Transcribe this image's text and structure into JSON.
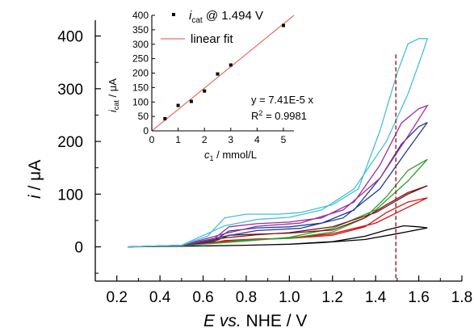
{
  "chart_data": [
    {
      "type": "line",
      "xlabel": {
        "E": "E",
        "vs": "vs.",
        "rest": "NHE / V"
      },
      "ylabel": {
        "i": "i",
        "rest": "/ μA"
      },
      "xlim": [
        0.1,
        1.8
      ],
      "ylim": [
        -65,
        430
      ],
      "x_ticks": [
        "0.2",
        "0.4",
        "0.6",
        "0.8",
        "1.0",
        "1.2",
        "1.4",
        "1.6",
        "1.8"
      ],
      "y_ticks": [
        "0",
        "100",
        "200",
        "300",
        "400"
      ],
      "marker_line": {
        "x": 1.494,
        "color": "#a52a2a",
        "style": "dashed"
      },
      "series": [
        {
          "color": "#000000",
          "forward": [
            [
              0.25,
              0
            ],
            [
              0.5,
              1
            ],
            [
              0.8,
              3
            ],
            [
              1.0,
              5
            ],
            [
              1.2,
              10
            ],
            [
              1.35,
              20
            ],
            [
              1.45,
              32
            ],
            [
              1.53,
              40
            ],
            [
              1.6,
              38
            ],
            [
              1.64,
              36
            ]
          ],
          "reverse": [
            [
              1.64,
              36
            ],
            [
              1.5,
              25
            ],
            [
              1.35,
              14
            ],
            [
              1.15,
              8
            ],
            [
              1.0,
              5
            ],
            [
              0.8,
              3
            ],
            [
              0.5,
              1
            ],
            [
              0.25,
              0
            ]
          ]
        },
        {
          "color": "#dd1111",
          "forward": [
            [
              0.25,
              0
            ],
            [
              0.5,
              3
            ],
            [
              0.65,
              8
            ],
            [
              0.7,
              12
            ],
            [
              0.85,
              15
            ],
            [
              1.0,
              16
            ],
            [
              1.2,
              22
            ],
            [
              1.35,
              38
            ],
            [
              1.45,
              65
            ],
            [
              1.55,
              85
            ],
            [
              1.64,
              93
            ]
          ],
          "reverse": [
            [
              1.64,
              93
            ],
            [
              1.55,
              75
            ],
            [
              1.4,
              45
            ],
            [
              1.2,
              25
            ],
            [
              1.0,
              17
            ],
            [
              0.85,
              14
            ],
            [
              0.7,
              10
            ],
            [
              0.5,
              3
            ],
            [
              0.25,
              0
            ]
          ]
        },
        {
          "color": "#2e9e2e",
          "forward": [
            [
              0.25,
              0
            ],
            [
              0.5,
              2
            ],
            [
              0.68,
              8
            ],
            [
              0.8,
              13
            ],
            [
              1.0,
              16
            ],
            [
              1.2,
              28
            ],
            [
              1.35,
              55
            ],
            [
              1.45,
              95
            ],
            [
              1.55,
              145
            ],
            [
              1.64,
              166
            ]
          ],
          "reverse": [
            [
              1.64,
              166
            ],
            [
              1.55,
              125
            ],
            [
              1.4,
              70
            ],
            [
              1.2,
              35
            ],
            [
              1.0,
              18
            ],
            [
              0.8,
              11
            ],
            [
              0.5,
              2
            ],
            [
              0.25,
              0
            ]
          ]
        },
        {
          "color": "#7a1515",
          "forward": [
            [
              0.25,
              0
            ],
            [
              0.5,
              3
            ],
            [
              0.65,
              10
            ],
            [
              0.72,
              22
            ],
            [
              0.85,
              24
            ],
            [
              1.0,
              26
            ],
            [
              1.2,
              32
            ],
            [
              1.35,
              55
            ],
            [
              1.45,
              80
            ],
            [
              1.55,
              103
            ],
            [
              1.64,
              116
            ]
          ],
          "reverse": [
            [
              1.64,
              116
            ],
            [
              1.55,
              100
            ],
            [
              1.4,
              65
            ],
            [
              1.2,
              38
            ],
            [
              1.0,
              27
            ],
            [
              0.85,
              23
            ],
            [
              0.7,
              17
            ],
            [
              0.5,
              3
            ],
            [
              0.25,
              0
            ]
          ]
        },
        {
          "color": "#203a9e",
          "forward": [
            [
              0.25,
              0
            ],
            [
              0.5,
              3
            ],
            [
              0.65,
              12
            ],
            [
              0.72,
              30
            ],
            [
              0.85,
              36
            ],
            [
              1.0,
              38
            ],
            [
              1.15,
              45
            ],
            [
              1.3,
              70
            ],
            [
              1.42,
              130
            ],
            [
              1.52,
              195
            ],
            [
              1.6,
              228
            ],
            [
              1.64,
              236
            ]
          ],
          "reverse": [
            [
              1.64,
              236
            ],
            [
              1.55,
              185
            ],
            [
              1.42,
              110
            ],
            [
              1.25,
              55
            ],
            [
              1.05,
              35
            ],
            [
              0.85,
              31
            ],
            [
              0.7,
              20
            ],
            [
              0.5,
              3
            ],
            [
              0.25,
              0
            ]
          ]
        },
        {
          "color": "#9e2e9e",
          "forward": [
            [
              0.25,
              0
            ],
            [
              0.5,
              3
            ],
            [
              0.65,
              15
            ],
            [
              0.72,
              38
            ],
            [
              0.85,
              44
            ],
            [
              1.0,
              47
            ],
            [
              1.15,
              55
            ],
            [
              1.3,
              85
            ],
            [
              1.42,
              155
            ],
            [
              1.52,
              235
            ],
            [
              1.6,
              262
            ],
            [
              1.64,
              268
            ]
          ],
          "reverse": [
            [
              1.64,
              268
            ],
            [
              1.55,
              210
            ],
            [
              1.42,
              130
            ],
            [
              1.25,
              70
            ],
            [
              1.05,
              45
            ],
            [
              0.85,
              39
            ],
            [
              0.7,
              25
            ],
            [
              0.5,
              3
            ],
            [
              0.25,
              0
            ]
          ]
        },
        {
          "color": "#45c0d8",
          "forward": [
            [
              0.25,
              0
            ],
            [
              0.5,
              3
            ],
            [
              0.62,
              20
            ],
            [
              0.7,
              55
            ],
            [
              0.8,
              62
            ],
            [
              0.95,
              62
            ],
            [
              1.05,
              65
            ],
            [
              1.2,
              80
            ],
            [
              1.32,
              110
            ],
            [
              1.42,
              220
            ],
            [
              1.5,
              330
            ],
            [
              1.55,
              385
            ],
            [
              1.6,
              395
            ],
            [
              1.64,
              395
            ]
          ],
          "reverse": [
            [
              1.64,
              395
            ],
            [
              1.62,
              370
            ],
            [
              1.55,
              290
            ],
            [
              1.45,
              200
            ],
            [
              1.3,
              110
            ],
            [
              1.15,
              70
            ],
            [
              1.0,
              56
            ],
            [
              0.85,
              52
            ],
            [
              0.7,
              40
            ],
            [
              0.5,
              3
            ],
            [
              0.25,
              0
            ]
          ]
        }
      ]
    },
    {
      "type": "scatter",
      "xlabel": {
        "c": "c",
        "sub": "1",
        "rest": " / mmol/L"
      },
      "ylabel": {
        "i": "i",
        "sub": "cat",
        "rest": " / μA"
      },
      "xlim": [
        0,
        5.4
      ],
      "ylim": [
        0,
        400
      ],
      "x_ticks": [
        "0",
        "1",
        "2",
        "3",
        "4",
        "5"
      ],
      "y_ticks": [
        "0",
        "50",
        "100",
        "150",
        "200",
        "250",
        "300",
        "350",
        "400"
      ],
      "points": [
        [
          0.5,
          42
        ],
        [
          1.0,
          88
        ],
        [
          1.5,
          102
        ],
        [
          2.0,
          138
        ],
        [
          2.5,
          197
        ],
        [
          3.0,
          228
        ],
        [
          5.0,
          365
        ]
      ],
      "fit_line": {
        "x": [
          0,
          5.4
        ],
        "y": [
          0,
          400
        ],
        "color": "#e2725b"
      },
      "legend": {
        "points_label": {
          "i": "i",
          "sub": "cat",
          "rest": " @ 1.494 V"
        },
        "fit_label": "linear fit"
      },
      "annotations": {
        "equation": "y = 7.41E-5 x",
        "r2_prefix": "R",
        "r2_sup": "2",
        "r2_value": " = 0.9981"
      }
    }
  ]
}
